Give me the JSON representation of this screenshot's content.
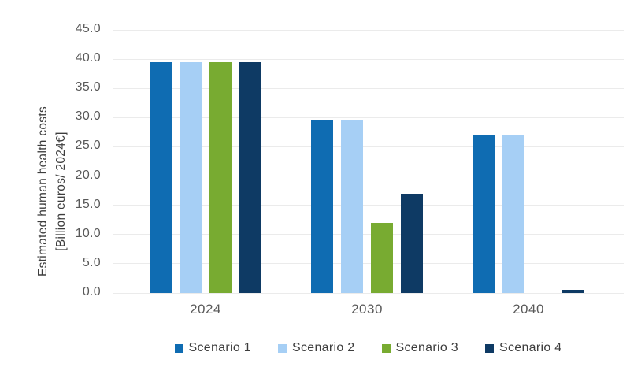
{
  "chart_data": {
    "type": "bar",
    "title": "",
    "categories": [
      "2024",
      "2030",
      "2040"
    ],
    "series": [
      {
        "name": "Scenario 1",
        "color": "#0f6cb2",
        "values": [
          39.5,
          29.5,
          27.0
        ]
      },
      {
        "name": "Scenario 2",
        "color": "#a6cff5",
        "values": [
          39.5,
          29.5,
          27.0
        ]
      },
      {
        "name": "Scenario 3",
        "color": "#78ab31",
        "values": [
          39.5,
          12.0,
          0.0
        ]
      },
      {
        "name": "Scenario 4",
        "color": "#0e3a64",
        "values": [
          39.5,
          17.0,
          0.5
        ]
      }
    ],
    "ylabel_line1": "Estimated human health costs",
    "ylabel_line2": "[Billion euros/ 2024€]",
    "xlabel": "",
    "ylim": [
      0,
      45
    ],
    "ytick_step": 5,
    "ytick_labels": [
      "0.0",
      "5.0",
      "10.0",
      "15.0",
      "20.0",
      "25.0",
      "30.0",
      "35.0",
      "40.0",
      "45.0"
    ],
    "grid": "horizontal",
    "legend_position": "bottom",
    "colors": {
      "gridline": "#ebebeb",
      "tick_text": "#595959",
      "axis_title_text": "#3d3d3d",
      "legend_text": "#3d3d3d",
      "background": "#ffffff"
    }
  }
}
